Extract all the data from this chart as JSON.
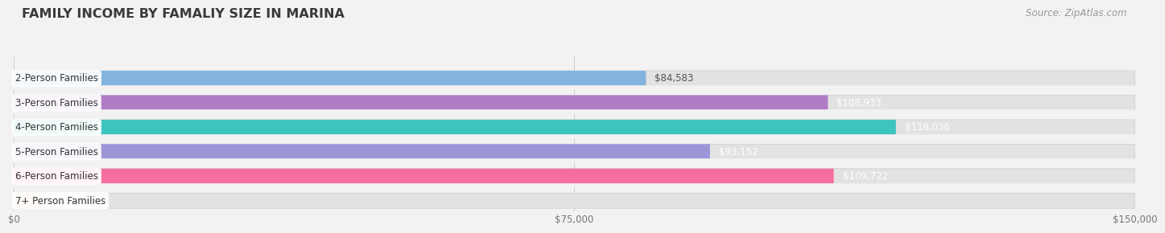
{
  "title": "FAMILY INCOME BY FAMALIY SIZE IN MARINA",
  "source": "Source: ZipAtlas.com",
  "categories": [
    "2-Person Families",
    "3-Person Families",
    "4-Person Families",
    "5-Person Families",
    "6-Person Families",
    "7+ Person Families"
  ],
  "values": [
    84583,
    108933,
    118036,
    93152,
    109722,
    0
  ],
  "bar_colors": [
    "#82b4de",
    "#b07cc6",
    "#3ec4c0",
    "#9b96d8",
    "#f46fa0",
    "#f5cfa0"
  ],
  "value_label_colors": [
    "#555555",
    "#ffffff",
    "#ffffff",
    "#ffffff",
    "#ffffff",
    "#555555"
  ],
  "xlim_max": 150000,
  "xticks": [
    0,
    75000,
    150000
  ],
  "xtick_labels": [
    "$0",
    "$75,000",
    "$150,000"
  ],
  "bg_color": "#f2f2f2",
  "bar_bg_color": "#e2e2e2",
  "title_color": "#3a3a3a",
  "source_color": "#999999",
  "title_fontsize": 11.5,
  "source_fontsize": 8.5,
  "value_fontsize": 8.5,
  "category_fontsize": 8.5
}
